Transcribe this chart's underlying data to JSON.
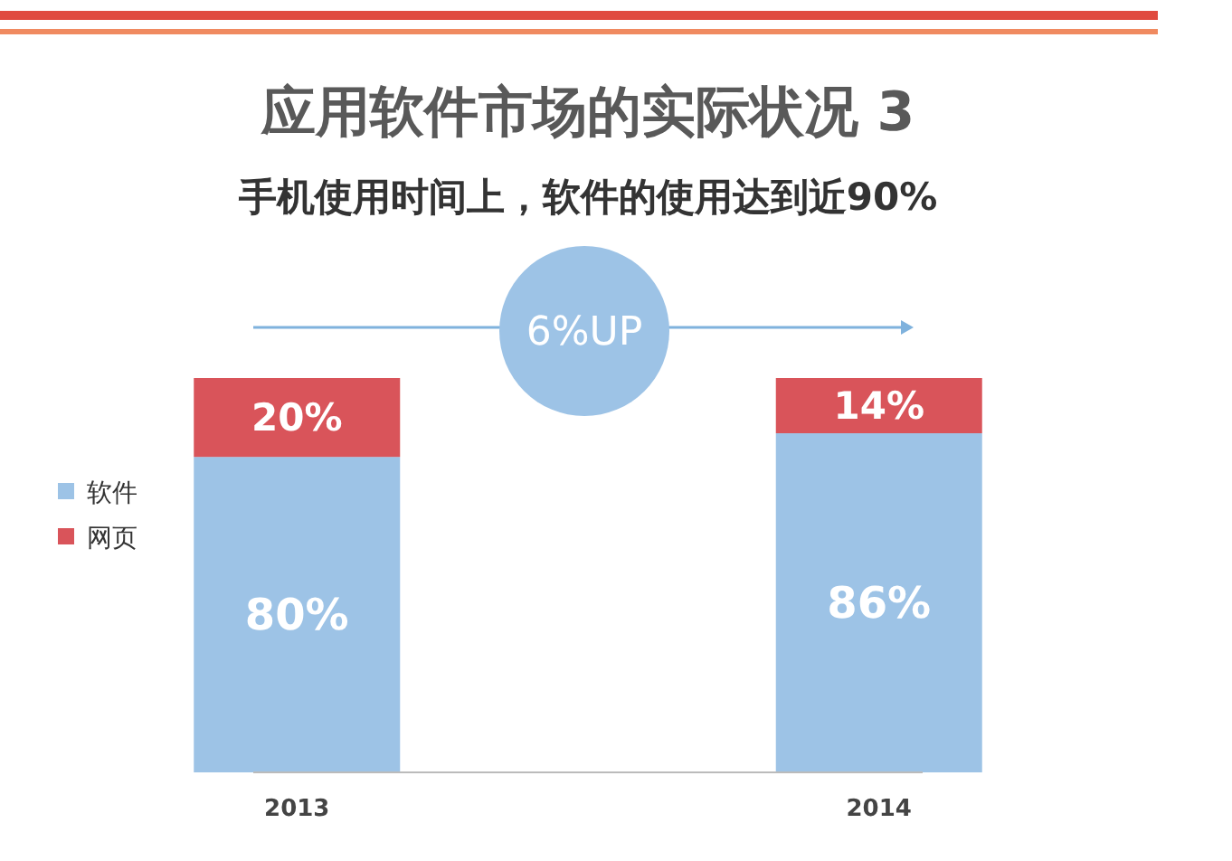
{
  "chart_data": {
    "type": "bar",
    "stacked": true,
    "title": "应用软件市场的实际状况 3",
    "subtitle": "手机使用时间上，软件的使用达到近90%",
    "categories": [
      "2013",
      "2014"
    ],
    "series": [
      {
        "name": "软件",
        "color": "#9dc3e6",
        "values": [
          80,
          86
        ],
        "value_labels": [
          "80%",
          "86%"
        ]
      },
      {
        "name": "网页",
        "color": "#d9545a",
        "values": [
          20,
          14
        ],
        "value_labels": [
          "20%",
          "14%"
        ]
      }
    ],
    "annotations": [
      "6%UP"
    ],
    "legend": "left",
    "grid": false
  }
}
